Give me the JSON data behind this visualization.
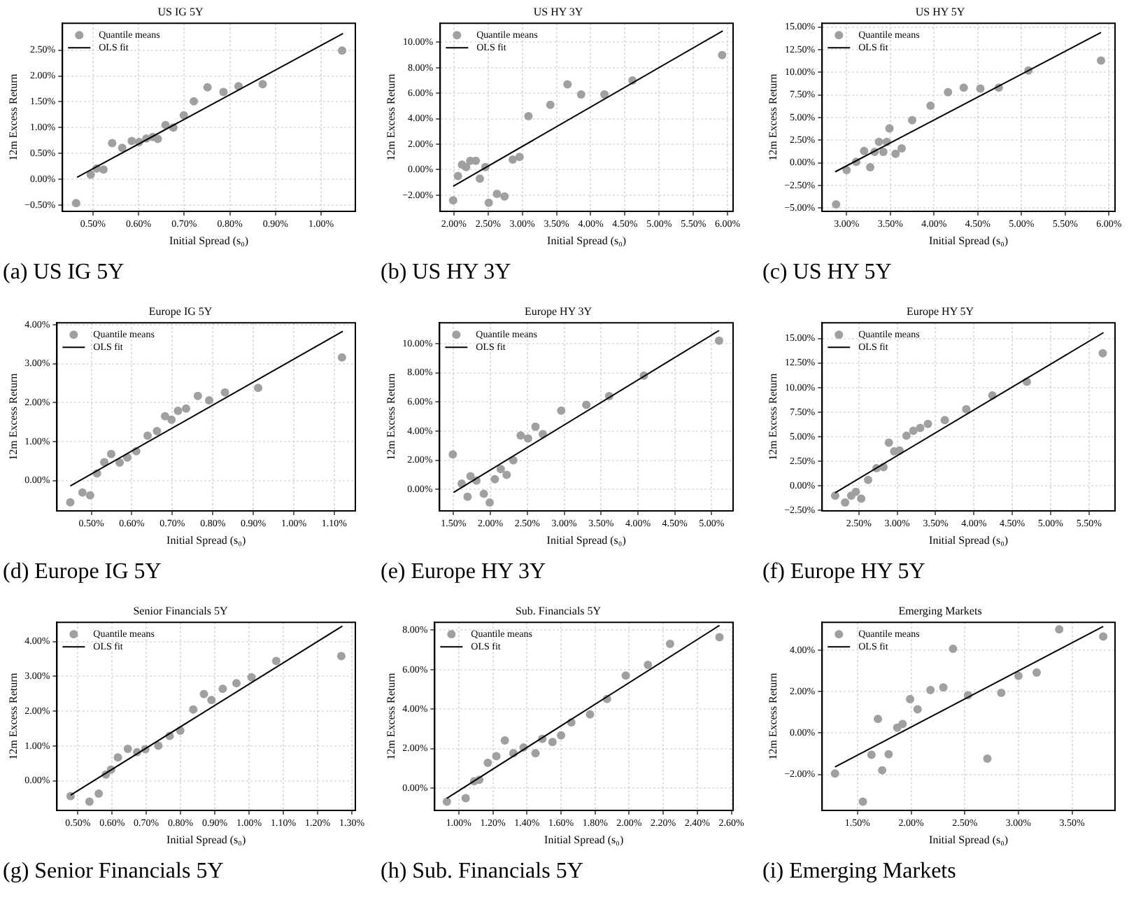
{
  "chart_data": [
    {
      "type": "scatter",
      "title": "US IG 5Y",
      "xlabel": "Initial Spread (s₀)",
      "ylabel": "12m Excess Return",
      "xlim": [
        0.433,
        1.075
      ],
      "ylim": [
        -0.62,
        3.02
      ],
      "xticks": [
        {
          "value": 0.5,
          "label": "0.50%"
        },
        {
          "value": 0.6,
          "label": "0.60%"
        },
        {
          "value": 0.7,
          "label": "0.70%"
        },
        {
          "value": 0.8,
          "label": "0.80%"
        },
        {
          "value": 0.9,
          "label": "0.90%"
        },
        {
          "value": 1.0,
          "label": "1.00%"
        }
      ],
      "yticks": [
        {
          "value": -0.5,
          "label": "−0.50%"
        },
        {
          "value": 0,
          "label": "0.00%"
        },
        {
          "value": 0.5,
          "label": "0.50%"
        },
        {
          "value": 1.0,
          "label": "1.00%"
        },
        {
          "value": 1.5,
          "label": "1.50%"
        },
        {
          "value": 2.0,
          "label": "2.00%"
        },
        {
          "value": 2.5,
          "label": "2.50%"
        }
      ],
      "grid": true,
      "legend": "top left",
      "annotations": [
        "(a) US IG 5Y"
      ],
      "series": [
        {
          "name": "Quantile means",
          "type": "scatter",
          "marker": "circle",
          "color": "#a0a0a0",
          "x": [
            0.463,
            0.495,
            0.508,
            0.523,
            0.542,
            0.564,
            0.585,
            0.601,
            0.617,
            0.631,
            0.642,
            0.659,
            0.676,
            0.699,
            0.721,
            0.751,
            0.786,
            0.819,
            0.872,
            1.046
          ],
          "values": [
            -0.46,
            0.09,
            0.21,
            0.19,
            0.7,
            0.61,
            0.74,
            0.72,
            0.79,
            0.82,
            0.78,
            1.05,
            1.0,
            1.24,
            1.51,
            1.78,
            1.69,
            1.8,
            1.84,
            2.49
          ]
        },
        {
          "name": "OLS fit",
          "type": "line",
          "marker": "none",
          "color": "#000000",
          "x": [
            0.465,
            1.048
          ],
          "values": [
            0.04,
            2.82
          ]
        }
      ]
    },
    {
      "type": "scatter",
      "title": "US HY 3Y",
      "xlabel": "Initial Spread (s₀)",
      "ylabel": "12m Excess Return",
      "xlim": [
        1.8,
        6.08
      ],
      "ylim": [
        -3.27,
        11.5
      ],
      "xticks": [
        {
          "value": 2.0,
          "label": "2.00%"
        },
        {
          "value": 2.5,
          "label": "2.50%"
        },
        {
          "value": 3.0,
          "label": "3.00%"
        },
        {
          "value": 3.5,
          "label": "3.50%"
        },
        {
          "value": 4.0,
          "label": "4.00%"
        },
        {
          "value": 4.5,
          "label": "4.50%"
        },
        {
          "value": 5.0,
          "label": "5.00%"
        },
        {
          "value": 5.5,
          "label": "5.50%"
        },
        {
          "value": 6.0,
          "label": "6.00%"
        }
      ],
      "yticks": [
        {
          "value": -2,
          "label": "−2.00%"
        },
        {
          "value": 0,
          "label": "0.00%"
        },
        {
          "value": 2,
          "label": "2.00%"
        },
        {
          "value": 4,
          "label": "4.00%"
        },
        {
          "value": 6,
          "label": "6.00%"
        },
        {
          "value": 8,
          "label": "8.00%"
        },
        {
          "value": 10,
          "label": "10.00%"
        }
      ],
      "grid": true,
      "legend": "top left",
      "annotations": [
        "(b) US HY 3Y"
      ],
      "series": [
        {
          "name": "Quantile means",
          "type": "scatter",
          "marker": "circle",
          "color": "#a0a0a0",
          "x": [
            1.99,
            2.06,
            2.12,
            2.18,
            2.24,
            2.32,
            2.38,
            2.46,
            2.51,
            2.63,
            2.74,
            2.86,
            2.96,
            3.09,
            3.41,
            3.66,
            3.86,
            4.2,
            4.61,
            5.92
          ],
          "values": [
            -2.4,
            -0.5,
            0.4,
            0.2,
            0.7,
            0.7,
            -0.7,
            0.2,
            -2.6,
            -1.9,
            -2.1,
            0.8,
            1.0,
            4.2,
            5.1,
            6.7,
            5.9,
            5.9,
            7.0,
            9.0
          ]
        },
        {
          "name": "OLS fit",
          "type": "line",
          "marker": "none",
          "color": "#000000",
          "x": [
            1.99,
            5.93
          ],
          "values": [
            -1.3,
            10.9
          ]
        }
      ]
    },
    {
      "type": "scatter",
      "title": "US HY 5Y",
      "xlabel": "Initial Spread (s₀)",
      "ylabel": "12m Excess Return",
      "xlim": [
        2.72,
        6.07
      ],
      "ylim": [
        -5.37,
        15.42
      ],
      "xticks": [
        {
          "value": 3.0,
          "label": "3.00%"
        },
        {
          "value": 3.5,
          "label": "3.50%"
        },
        {
          "value": 4.0,
          "label": "4.00%"
        },
        {
          "value": 4.5,
          "label": "4.50%"
        },
        {
          "value": 5.0,
          "label": "5.00%"
        },
        {
          "value": 5.5,
          "label": "5.50%"
        },
        {
          "value": 6.0,
          "label": "6.00%"
        }
      ],
      "yticks": [
        {
          "value": -5,
          "label": "−5.00%"
        },
        {
          "value": -2.5,
          "label": "−2.50%"
        },
        {
          "value": 0,
          "label": "0.00%"
        },
        {
          "value": 2.5,
          "label": "2.50%"
        },
        {
          "value": 5,
          "label": "5.00%"
        },
        {
          "value": 7.5,
          "label": "7.50%"
        },
        {
          "value": 10,
          "label": "10.00%"
        },
        {
          "value": 12.5,
          "label": "12.50%"
        },
        {
          "value": 15,
          "label": "15.00%"
        }
      ],
      "grid": true,
      "legend": "top left",
      "annotations": [
        "(c) US HY 5Y"
      ],
      "series": [
        {
          "name": "Quantile means",
          "type": "scatter",
          "marker": "circle",
          "color": "#a0a0a0",
          "x": [
            2.88,
            3.0,
            3.11,
            3.2,
            3.27,
            3.32,
            3.37,
            3.42,
            3.46,
            3.49,
            3.56,
            3.63,
            3.75,
            3.96,
            4.16,
            4.34,
            4.53,
            4.74,
            5.08,
            5.91
          ],
          "values": [
            -4.6,
            -0.8,
            0.1,
            1.3,
            -0.5,
            1.2,
            2.3,
            1.2,
            2.3,
            3.8,
            1.0,
            1.6,
            4.7,
            6.3,
            7.8,
            8.3,
            8.2,
            8.3,
            10.2,
            11.3
          ]
        },
        {
          "name": "OLS fit",
          "type": "line",
          "marker": "none",
          "color": "#000000",
          "x": [
            2.87,
            5.91
          ],
          "values": [
            -1.0,
            14.4
          ]
        }
      ]
    },
    {
      "type": "scatter",
      "title": "Europe IG 5Y",
      "xlabel": "Initial Spread (s₀)",
      "ylabel": "12m Excess Return",
      "xlim": [
        0.415,
        1.152
      ],
      "ylim": [
        -0.78,
        4.05
      ],
      "xticks": [
        {
          "value": 0.5,
          "label": "0.50%"
        },
        {
          "value": 0.6,
          "label": "0.60%"
        },
        {
          "value": 0.7,
          "label": "0.70%"
        },
        {
          "value": 0.8,
          "label": "0.80%"
        },
        {
          "value": 0.9,
          "label": "0.90%"
        },
        {
          "value": 1.0,
          "label": "1.00%"
        },
        {
          "value": 1.1,
          "label": "1.10%"
        }
      ],
      "yticks": [
        {
          "value": 0,
          "label": "0.00%"
        },
        {
          "value": 1,
          "label": "1.00%"
        },
        {
          "value": 2,
          "label": "2.00%"
        },
        {
          "value": 3,
          "label": "3.00%"
        },
        {
          "value": 4,
          "label": "4.00%"
        }
      ],
      "grid": true,
      "legend": "top left",
      "annotations": [
        "(d) Europe IG 5Y"
      ],
      "series": [
        {
          "name": "Quantile means",
          "type": "scatter",
          "marker": "circle",
          "color": "#a0a0a0",
          "x": [
            0.448,
            0.478,
            0.497,
            0.514,
            0.532,
            0.549,
            0.57,
            0.589,
            0.611,
            0.639,
            0.662,
            0.682,
            0.698,
            0.714,
            0.734,
            0.763,
            0.791,
            0.83,
            0.912,
            1.119
          ],
          "values": [
            -0.56,
            -0.31,
            -0.38,
            0.18,
            0.47,
            0.68,
            0.46,
            0.59,
            0.75,
            1.15,
            1.27,
            1.65,
            1.56,
            1.79,
            1.85,
            2.17,
            2.06,
            2.26,
            2.38,
            3.16
          ]
        },
        {
          "name": "OLS fit",
          "type": "line",
          "marker": "none",
          "color": "#000000",
          "x": [
            0.448,
            1.121
          ],
          "values": [
            -0.14,
            3.83
          ]
        }
      ]
    },
    {
      "type": "scatter",
      "title": "Europe HY 3Y",
      "xlabel": "Initial Spread (s₀)",
      "ylabel": "12m Excess Return",
      "xlim": [
        1.31,
        5.29
      ],
      "ylim": [
        -1.47,
        11.43
      ],
      "xticks": [
        {
          "value": 1.5,
          "label": "1.50%"
        },
        {
          "value": 2.0,
          "label": "2.00%"
        },
        {
          "value": 2.5,
          "label": "2.50%"
        },
        {
          "value": 3.0,
          "label": "3.00%"
        },
        {
          "value": 3.5,
          "label": "3.50%"
        },
        {
          "value": 4.0,
          "label": "4.00%"
        },
        {
          "value": 4.5,
          "label": "4.50%"
        },
        {
          "value": 5.0,
          "label": "5.00%"
        }
      ],
      "yticks": [
        {
          "value": 0,
          "label": "0.00%"
        },
        {
          "value": 2,
          "label": "2.00%"
        },
        {
          "value": 4,
          "label": "4.00%"
        },
        {
          "value": 6,
          "label": "6.00%"
        },
        {
          "value": 8,
          "label": "8.00%"
        },
        {
          "value": 10,
          "label": "10.00%"
        }
      ],
      "grid": true,
      "legend": "top left",
      "annotations": [
        "(e) Europe HY 3Y"
      ],
      "series": [
        {
          "name": "Quantile means",
          "type": "scatter",
          "marker": "circle",
          "color": "#a0a0a0",
          "x": [
            1.49,
            1.61,
            1.69,
            1.73,
            1.81,
            1.91,
            1.99,
            2.06,
            2.14,
            2.22,
            2.31,
            2.41,
            2.51,
            2.61,
            2.71,
            2.96,
            3.3,
            3.61,
            4.08,
            5.1
          ],
          "values": [
            2.4,
            0.4,
            -0.5,
            0.9,
            0.6,
            -0.3,
            -0.9,
            0.7,
            1.4,
            1.0,
            2.0,
            3.7,
            3.5,
            4.3,
            3.8,
            5.4,
            5.8,
            6.4,
            7.8,
            10.2
          ]
        },
        {
          "name": "OLS fit",
          "type": "line",
          "marker": "none",
          "color": "#000000",
          "x": [
            1.5,
            5.1
          ],
          "values": [
            -0.2,
            10.9
          ]
        }
      ]
    },
    {
      "type": "scatter",
      "title": "Europe HY 5Y",
      "xlabel": "Initial Spread (s₀)",
      "ylabel": "12m Excess Return",
      "xlim": [
        2.02,
        5.84
      ],
      "ylim": [
        -2.55,
        16.6
      ],
      "xticks": [
        {
          "value": 2.5,
          "label": "2.50%"
        },
        {
          "value": 3.0,
          "label": "3.00%"
        },
        {
          "value": 3.5,
          "label": "3.50%"
        },
        {
          "value": 4.0,
          "label": "4.00%"
        },
        {
          "value": 4.5,
          "label": "4.50%"
        },
        {
          "value": 5.0,
          "label": "5.00%"
        },
        {
          "value": 5.5,
          "label": "5.50%"
        }
      ],
      "yticks": [
        {
          "value": -2.5,
          "label": "−2.50%"
        },
        {
          "value": 0,
          "label": "0.00%"
        },
        {
          "value": 2.5,
          "label": "2.50%"
        },
        {
          "value": 5,
          "label": "5.00%"
        },
        {
          "value": 7.5,
          "label": "7.50%"
        },
        {
          "value": 10,
          "label": "10.00%"
        },
        {
          "value": 12.5,
          "label": "12.50%"
        },
        {
          "value": 15,
          "label": "15.00%"
        }
      ],
      "grid": true,
      "legend": "top left",
      "annotations": [
        "(f) Europe HY 5Y"
      ],
      "series": [
        {
          "name": "Quantile means",
          "type": "scatter",
          "marker": "circle",
          "color": "#a0a0a0",
          "x": [
            2.19,
            2.32,
            2.4,
            2.46,
            2.53,
            2.62,
            2.73,
            2.82,
            2.89,
            2.96,
            3.03,
            3.12,
            3.21,
            3.3,
            3.4,
            3.62,
            3.9,
            4.24,
            4.69,
            5.68
          ],
          "values": [
            -1.0,
            -1.7,
            -1.0,
            -0.6,
            -1.3,
            0.6,
            1.8,
            1.9,
            4.4,
            3.5,
            3.6,
            5.1,
            5.6,
            5.9,
            6.3,
            6.7,
            7.8,
            9.2,
            10.6,
            13.5
          ]
        },
        {
          "name": "OLS fit",
          "type": "line",
          "marker": "none",
          "color": "#000000",
          "x": [
            2.19,
            5.69
          ],
          "values": [
            -0.7,
            15.6
          ]
        }
      ]
    },
    {
      "type": "scatter",
      "title": "Senior Financials 5Y",
      "xlabel": "Initial Spread (s₀)",
      "ylabel": "12m Excess Return",
      "xlim": [
        0.439,
        1.31
      ],
      "ylim": [
        -0.85,
        4.55
      ],
      "xticks": [
        {
          "value": 0.5,
          "label": "0.50%"
        },
        {
          "value": 0.6,
          "label": "0.60%"
        },
        {
          "value": 0.7,
          "label": "0.70%"
        },
        {
          "value": 0.8,
          "label": "0.80%"
        },
        {
          "value": 0.9,
          "label": "0.90%"
        },
        {
          "value": 1.0,
          "label": "1.00%"
        },
        {
          "value": 1.1,
          "label": "1.10%"
        },
        {
          "value": 1.2,
          "label": "1.20%"
        },
        {
          "value": 1.3,
          "label": "1.30%"
        }
      ],
      "yticks": [
        {
          "value": 0,
          "label": "0.00%"
        },
        {
          "value": 1,
          "label": "1.00%"
        },
        {
          "value": 2,
          "label": "2.00%"
        },
        {
          "value": 3,
          "label": "3.00%"
        },
        {
          "value": 4,
          "label": "4.00%"
        }
      ],
      "grid": true,
      "legend": "top left",
      "annotations": [
        "(g) Senior Financials 5Y"
      ],
      "series": [
        {
          "name": "Quantile means",
          "type": "scatter",
          "marker": "circle",
          "color": "#a0a0a0",
          "x": [
            0.479,
            0.534,
            0.561,
            0.582,
            0.597,
            0.617,
            0.646,
            0.673,
            0.697,
            0.735,
            0.768,
            0.799,
            0.837,
            0.868,
            0.89,
            0.923,
            0.963,
            1.007,
            1.079,
            1.269
          ],
          "values": [
            -0.44,
            -0.6,
            -0.37,
            0.18,
            0.32,
            0.67,
            0.92,
            0.82,
            0.91,
            1.01,
            1.29,
            1.44,
            2.05,
            2.49,
            2.32,
            2.64,
            2.8,
            2.97,
            3.44,
            3.58
          ]
        },
        {
          "name": "OLS fit",
          "type": "line",
          "marker": "none",
          "color": "#000000",
          "x": [
            0.479,
            1.272
          ],
          "values": [
            -0.41,
            4.44
          ]
        }
      ]
    },
    {
      "type": "scatter",
      "title": "Sub. Financials 5Y",
      "xlabel": "Initial Spread (s₀)",
      "ylabel": "12m Excess Return",
      "xlim": [
        0.858,
        2.61
      ],
      "ylim": [
        -1.14,
        8.4
      ],
      "xticks": [
        {
          "value": 1.0,
          "label": "1.00%"
        },
        {
          "value": 1.2,
          "label": "1.20%"
        },
        {
          "value": 1.4,
          "label": "1.40%"
        },
        {
          "value": 1.6,
          "label": "1.60%"
        },
        {
          "value": 1.8,
          "label": "1.80%"
        },
        {
          "value": 2.0,
          "label": "2.00%"
        },
        {
          "value": 2.2,
          "label": "2.20%"
        },
        {
          "value": 2.4,
          "label": "2.40%"
        },
        {
          "value": 2.6,
          "label": "2.60%"
        }
      ],
      "yticks": [
        {
          "value": 0,
          "label": "0.00%"
        },
        {
          "value": 2,
          "label": "2.00%"
        },
        {
          "value": 4,
          "label": "4.00%"
        },
        {
          "value": 6,
          "label": "6.00%"
        },
        {
          "value": 8,
          "label": "8.00%"
        }
      ],
      "grid": true,
      "legend": "top left",
      "annotations": [
        "(h) Sub. Financials 5Y"
      ],
      "series": [
        {
          "name": "Quantile means",
          "type": "scatter",
          "marker": "circle",
          "color": "#a0a0a0",
          "x": [
            0.93,
            1.04,
            1.09,
            1.12,
            1.17,
            1.22,
            1.27,
            1.32,
            1.38,
            1.45,
            1.49,
            1.55,
            1.6,
            1.66,
            1.77,
            1.87,
            1.98,
            2.11,
            2.24,
            2.53
          ],
          "values": [
            -0.7,
            -0.52,
            0.34,
            0.41,
            1.27,
            1.61,
            2.41,
            1.76,
            2.05,
            1.76,
            2.49,
            2.33,
            2.67,
            3.32,
            3.73,
            4.51,
            5.7,
            6.24,
            7.31,
            7.64
          ]
        },
        {
          "name": "OLS fit",
          "type": "line",
          "marker": "none",
          "color": "#000000",
          "x": [
            0.93,
            2.53
          ],
          "values": [
            -0.52,
            8.24
          ]
        }
      ]
    },
    {
      "type": "scatter",
      "title": "Emerging Markets",
      "xlabel": "Initial Spread (s₀)",
      "ylabel": "12m Excess Return",
      "xlim": [
        1.17,
        3.9
      ],
      "ylim": [
        -3.74,
        5.35
      ],
      "xticks": [
        {
          "value": 1.5,
          "label": "1.50%"
        },
        {
          "value": 2.0,
          "label": "2.00%"
        },
        {
          "value": 2.5,
          "label": "2.50%"
        },
        {
          "value": 3.0,
          "label": "3.00%"
        },
        {
          "value": 3.5,
          "label": "3.50%"
        }
      ],
      "yticks": [
        {
          "value": -2,
          "label": "−2.00%"
        },
        {
          "value": 0,
          "label": "0.00%"
        },
        {
          "value": 2,
          "label": "2.00%"
        },
        {
          "value": 4,
          "label": "4.00%"
        }
      ],
      "grid": true,
      "legend": "top left",
      "annotations": [
        "(i) Emerging Markets"
      ],
      "series": [
        {
          "name": "Quantile means",
          "type": "scatter",
          "marker": "circle",
          "color": "#a0a0a0",
          "x": [
            1.29,
            1.55,
            1.63,
            1.69,
            1.73,
            1.79,
            1.87,
            1.92,
            1.99,
            2.06,
            2.18,
            2.3,
            2.39,
            2.53,
            2.71,
            2.84,
            3.0,
            3.17,
            3.38,
            3.79
          ],
          "values": [
            -1.96,
            -3.32,
            -1.05,
            0.68,
            -1.8,
            -1.03,
            0.26,
            0.44,
            1.64,
            1.15,
            2.08,
            2.2,
            4.07,
            1.82,
            -1.24,
            1.94,
            2.76,
            2.92,
            5.01,
            4.66
          ]
        },
        {
          "name": "OLS fit",
          "type": "line",
          "marker": "none",
          "color": "#000000",
          "x": [
            1.29,
            3.79
          ],
          "values": [
            -1.64,
            5.15
          ]
        }
      ]
    }
  ]
}
